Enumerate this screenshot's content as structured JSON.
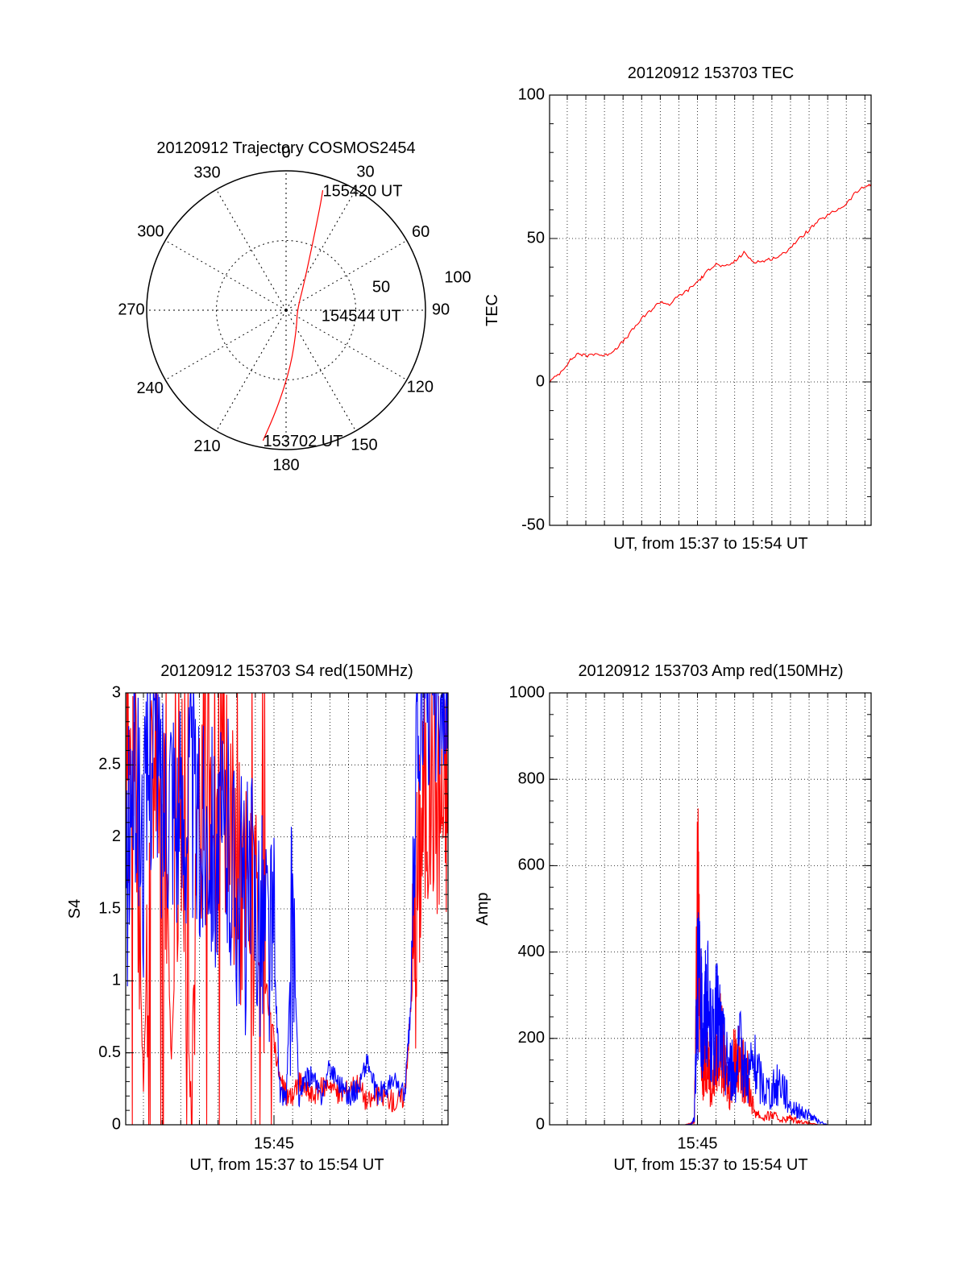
{
  "colors": {
    "red": "#ff0000",
    "blue": "#0000ff",
    "axis": "#000000",
    "background": "#ffffff"
  },
  "chart_data": [
    {
      "id": "trajectory",
      "type": "polar",
      "title": "20120912 Trajectory COSMOS2454",
      "angle_labels": [
        "0",
        "30",
        "60",
        "90",
        "120",
        "150",
        "180",
        "210",
        "240",
        "270",
        "300",
        "330"
      ],
      "radius_labels": [
        "50",
        "100"
      ],
      "grid": true,
      "series": [
        {
          "color": "red",
          "points": [
            {
              "azimuth": 190,
              "zenith": 95
            },
            {
              "azimuth": 185,
              "zenith": 70
            },
            {
              "azimuth": 175,
              "zenith": 40
            },
            {
              "azimuth": 150,
              "zenith": 15
            },
            {
              "azimuth": 90,
              "zenith": 8
            },
            {
              "azimuth": 35,
              "zenith": 22
            },
            {
              "azimuth": 22,
              "zenith": 50
            },
            {
              "azimuth": 18,
              "zenith": 80
            },
            {
              "azimuth": 17,
              "zenith": 90
            }
          ]
        }
      ],
      "annotations": [
        {
          "text": "155420 UT",
          "azimuth": 17,
          "zenith": 90
        },
        {
          "text": "154544 UT",
          "azimuth": 90,
          "zenith": 8
        },
        {
          "text": "153702 UT",
          "azimuth": 190,
          "zenith": 95
        }
      ]
    },
    {
      "id": "tec",
      "type": "line",
      "title": "20120912 153703 TEC",
      "xlabel": "UT, from 15:37 to 15:54 UT",
      "ylabel": "TEC",
      "xlim": [
        "15:37:03",
        "15:54:20"
      ],
      "ylim": [
        -50,
        100
      ],
      "yticks": [
        "-50",
        "0",
        "50",
        "100"
      ],
      "grid": true,
      "series": [
        {
          "color": "red",
          "x": [
            "15:37:03",
            "15:37:35",
            "15:38:05",
            "15:38:35",
            "15:39:00",
            "15:39:30",
            "15:40:00",
            "15:40:30",
            "15:41:00",
            "15:41:30",
            "15:42:00",
            "15:42:30",
            "15:43:00",
            "15:43:30",
            "15:44:00",
            "15:44:30",
            "15:45:00",
            "15:45:20",
            "15:45:44",
            "15:46:00",
            "15:46:30",
            "15:47:00",
            "15:47:30",
            "15:48:00",
            "15:48:30",
            "15:49:00",
            "15:49:30",
            "15:50:00",
            "15:50:30",
            "15:51:00",
            "15:51:30",
            "15:52:00",
            "15:52:30",
            "15:53:00",
            "15:53:30",
            "15:54:00",
            "15:54:20"
          ],
          "y": [
            0,
            3,
            7,
            10,
            9,
            10,
            9,
            11,
            14,
            18,
            22,
            25,
            28,
            27,
            30,
            32,
            35,
            37,
            40,
            41,
            40,
            42,
            45,
            42,
            42,
            43,
            44,
            47,
            50,
            53,
            56,
            58,
            60,
            62,
            66,
            68,
            69
          ]
        }
      ]
    },
    {
      "id": "s4",
      "type": "line",
      "title": "20120912 153703 S4 red(150MHz)",
      "xlabel": "UT, from 15:37 to 15:54 UT",
      "ylabel": "S4",
      "xlim": [
        "15:37:03",
        "15:54:20"
      ],
      "ylim": [
        0,
        3
      ],
      "yticks": [
        "0",
        "0.5",
        "1",
        "1.5",
        "2",
        "2.5",
        "3"
      ],
      "xticks": [
        "15:45"
      ],
      "grid": true,
      "series": [
        {
          "color": "red",
          "x": [
            "15:37:03",
            "15:37:30",
            "15:38:00",
            "15:38:30",
            "15:39:00",
            "15:39:30",
            "15:40:00",
            "15:40:30",
            "15:41:00",
            "15:41:30",
            "15:42:00",
            "15:42:30",
            "15:43:00",
            "15:43:30",
            "15:44:00",
            "15:44:30",
            "15:45:00",
            "15:45:20",
            "15:45:40",
            "15:46:00",
            "15:46:20",
            "15:46:40",
            "15:47:00",
            "15:47:30",
            "15:48:00",
            "15:48:30",
            "15:49:00",
            "15:49:30",
            "15:50:00",
            "15:50:30",
            "15:51:00",
            "15:51:30",
            "15:52:00",
            "15:52:20",
            "15:52:40",
            "15:53:00",
            "15:53:30",
            "15:54:00",
            "15:54:20"
          ],
          "y": [
            2.2,
            2.5,
            0.3,
            2.6,
            2.8,
            0.4,
            2.5,
            0.2,
            2.3,
            2.4,
            2.0,
            2.1,
            1.8,
            1.6,
            1.3,
            1.0,
            0.6,
            0.3,
            0.2,
            0.2,
            0.3,
            0.25,
            0.2,
            0.25,
            0.3,
            0.2,
            0.25,
            0.3,
            0.15,
            0.2,
            0.2,
            0.15,
            0.2,
            0.8,
            1.6,
            2.2,
            2.4,
            2.2,
            2.3
          ]
        },
        {
          "color": "blue",
          "x": [
            "15:37:03",
            "15:37:30",
            "15:38:00",
            "15:38:30",
            "15:39:00",
            "15:39:30",
            "15:40:00",
            "15:40:30",
            "15:41:00",
            "15:41:30",
            "15:42:00",
            "15:42:30",
            "15:43:00",
            "15:43:30",
            "15:44:00",
            "15:44:30",
            "15:45:00",
            "15:45:20",
            "15:45:40",
            "15:46:00",
            "15:46:20",
            "15:46:40",
            "15:47:00",
            "15:47:30",
            "15:48:00",
            "15:48:30",
            "15:49:00",
            "15:49:30",
            "15:50:00",
            "15:50:30",
            "15:51:00",
            "15:51:30",
            "15:52:00",
            "15:52:20",
            "15:52:40",
            "15:53:00",
            "15:53:30",
            "15:54:00",
            "15:54:20"
          ],
          "y": [
            1.5,
            2.6,
            1.9,
            2.8,
            2.2,
            2.5,
            2.0,
            2.4,
            1.9,
            2.2,
            1.8,
            2.0,
            1.7,
            1.5,
            1.6,
            1.4,
            1.2,
            0.2,
            0.2,
            1.5,
            0.2,
            0.3,
            0.35,
            0.2,
            0.4,
            0.3,
            0.2,
            0.25,
            0.45,
            0.2,
            0.25,
            0.3,
            0.2,
            0.8,
            2.7,
            2.9,
            2.8,
            2.9,
            2.8
          ]
        }
      ]
    },
    {
      "id": "amp",
      "type": "line",
      "title": "20120912 153703 Amp red(150MHz)",
      "xlabel": "UT, from 15:37 to 15:54 UT",
      "ylabel": "Amp",
      "xlim": [
        "15:37:03",
        "15:54:20"
      ],
      "ylim": [
        0,
        1000
      ],
      "yticks": [
        "0",
        "200",
        "400",
        "600",
        "800",
        "1000"
      ],
      "xticks": [
        "15:45"
      ],
      "grid": true,
      "series": [
        {
          "color": "red",
          "x": [
            "15:37:03",
            "15:39:00",
            "15:41:00",
            "15:43:00",
            "15:44:20",
            "15:44:40",
            "15:44:50",
            "15:45:00",
            "15:45:10",
            "15:45:20",
            "15:45:30",
            "15:45:45",
            "15:46:00",
            "15:46:15",
            "15:46:30",
            "15:46:45",
            "15:47:00",
            "15:47:20",
            "15:47:40",
            "15:48:00",
            "15:48:30",
            "15:49:00",
            "15:49:30",
            "15:50:00",
            "15:50:30",
            "15:51:00",
            "15:51:30",
            "15:52:00",
            "15:54:20"
          ],
          "y": [
            0,
            0,
            0,
            0,
            0,
            5,
            10,
            750,
            300,
            150,
            250,
            100,
            200,
            260,
            150,
            100,
            220,
            180,
            150,
            50,
            20,
            30,
            15,
            20,
            10,
            5,
            0,
            0,
            0
          ]
        },
        {
          "color": "blue",
          "x": [
            "15:37:03",
            "15:39:00",
            "15:41:00",
            "15:43:00",
            "15:44:20",
            "15:44:40",
            "15:44:50",
            "15:45:00",
            "15:45:10",
            "15:45:20",
            "15:45:30",
            "15:45:45",
            "15:46:00",
            "15:46:15",
            "15:46:30",
            "15:46:45",
            "15:47:00",
            "15:47:20",
            "15:47:40",
            "15:48:00",
            "15:48:30",
            "15:49:00",
            "15:49:30",
            "15:50:00",
            "15:50:30",
            "15:51:00",
            "15:51:30",
            "15:52:00",
            "15:54:20"
          ],
          "y": [
            0,
            0,
            0,
            0,
            0,
            2,
            20,
            500,
            350,
            300,
            400,
            250,
            320,
            290,
            200,
            180,
            150,
            230,
            150,
            190,
            120,
            100,
            140,
            60,
            40,
            30,
            10,
            0,
            0
          ]
        }
      ]
    }
  ]
}
